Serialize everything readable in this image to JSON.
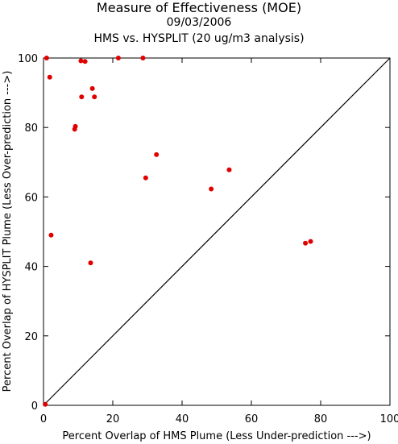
{
  "chart_data": {
    "type": "scatter",
    "title": "Measure of Effectiveness (MOE)",
    "subtitle_date": "09/03/2006",
    "subtitle": "HMS vs. HYSPLIT  (20 ug/m3 analysis)",
    "xlabel": "Percent Overlap of HMS Plume (Less Under-prediction --->)",
    "ylabel": "Percent Overlap of HYSPLIT Plume (Less Over-prediction --->)",
    "xlim": [
      0,
      100
    ],
    "ylim": [
      0,
      100
    ],
    "xticks": [
      0,
      20,
      40,
      60,
      80,
      100
    ],
    "yticks": [
      0,
      20,
      40,
      60,
      80,
      100
    ],
    "reference_line": {
      "from": [
        0,
        0
      ],
      "to": [
        100,
        100
      ]
    },
    "grid": false,
    "point_color": "#e00000",
    "points": [
      {
        "x": 0.5,
        "y": 0.3
      },
      {
        "x": 0.9,
        "y": 100
      },
      {
        "x": 1.8,
        "y": 94.5
      },
      {
        "x": 2.2,
        "y": 49
      },
      {
        "x": 9.0,
        "y": 79.5
      },
      {
        "x": 9.2,
        "y": 80.3
      },
      {
        "x": 10.8,
        "y": 99.2
      },
      {
        "x": 11.0,
        "y": 88.8
      },
      {
        "x": 12.0,
        "y": 99.0
      },
      {
        "x": 13.6,
        "y": 41
      },
      {
        "x": 14.1,
        "y": 91.2
      },
      {
        "x": 14.7,
        "y": 88.8
      },
      {
        "x": 21.6,
        "y": 100
      },
      {
        "x": 28.7,
        "y": 100
      },
      {
        "x": 29.5,
        "y": 65.5
      },
      {
        "x": 32.6,
        "y": 72.2
      },
      {
        "x": 48.4,
        "y": 62.3
      },
      {
        "x": 53.6,
        "y": 67.8
      },
      {
        "x": 75.6,
        "y": 46.7
      },
      {
        "x": 77.1,
        "y": 47.2
      }
    ]
  }
}
